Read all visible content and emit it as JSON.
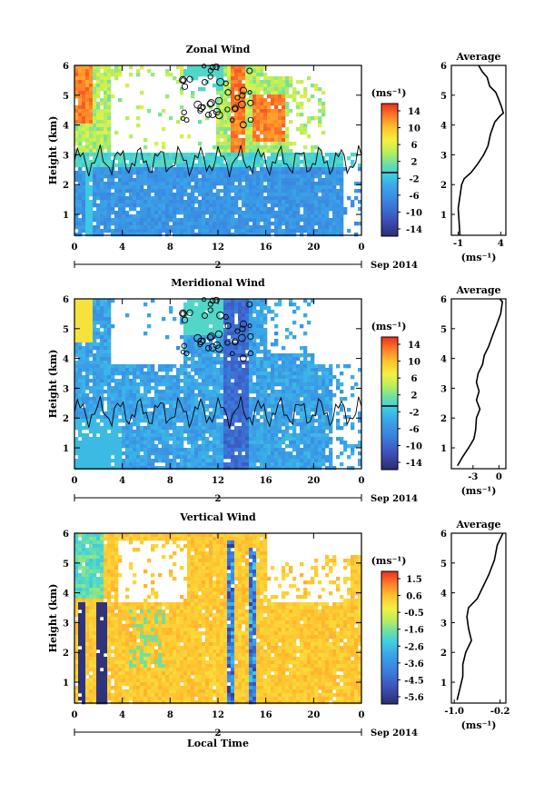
{
  "figure": {
    "xlabel": "Local Time",
    "date_label": "Sep 2014",
    "day_label": "2"
  },
  "chart_data": [
    {
      "type": "heatmap",
      "title": "Zonal Wind",
      "ylabel": "Height (km)",
      "xlabel": "Local Time",
      "x_ticks": [
        "0",
        "4",
        "8",
        "12",
        "16",
        "20",
        "0"
      ],
      "y_ticks": [
        "1",
        "2",
        "3",
        "4",
        "5",
        "6"
      ],
      "xlim": [
        0,
        24
      ],
      "ylim": [
        0.3,
        6
      ],
      "colorbar": {
        "unit": "(ms⁻¹)",
        "ticks": [
          "14",
          "10",
          "6",
          "2",
          "-2",
          "-6",
          "-10",
          "-14"
        ],
        "range": [
          -16,
          16
        ],
        "zero_line": true
      },
      "contour_level": 0,
      "date_label": "Sep 2014",
      "day_label": "2",
      "average": {
        "title": "Average",
        "xlabel": "(ms⁻¹)",
        "x_ticks": [
          "-1",
          "4"
        ],
        "xlim": [
          -1.8,
          4.6
        ],
        "y_ticks": [
          "1",
          "2",
          "3",
          "4",
          "5",
          "6"
        ],
        "ylim": [
          0.3,
          6
        ],
        "profile": [
          [
            -0.8,
            0.3
          ],
          [
            -0.9,
            0.8
          ],
          [
            -1.0,
            1.2
          ],
          [
            -0.8,
            1.6
          ],
          [
            -0.6,
            2.0
          ],
          [
            -0.3,
            2.2
          ],
          [
            0.5,
            2.4
          ],
          [
            1.3,
            2.7
          ],
          [
            2.0,
            3.0
          ],
          [
            2.5,
            3.3
          ],
          [
            2.8,
            3.7
          ],
          [
            3.3,
            4.1
          ],
          [
            3.9,
            4.3
          ],
          [
            4.3,
            4.4
          ],
          [
            4.1,
            4.6
          ],
          [
            3.7,
            4.9
          ],
          [
            3.4,
            5.1
          ],
          [
            2.7,
            5.3
          ],
          [
            2.4,
            5.6
          ],
          [
            1.8,
            5.8
          ],
          [
            1.4,
            6.0
          ]
        ]
      }
    },
    {
      "type": "heatmap",
      "title": "Meridional Wind",
      "ylabel": "Height (km)",
      "xlabel": "Local Time",
      "x_ticks": [
        "0",
        "4",
        "8",
        "12",
        "16",
        "20",
        "0"
      ],
      "y_ticks": [
        "1",
        "2",
        "3",
        "4",
        "5",
        "6"
      ],
      "xlim": [
        0,
        24
      ],
      "ylim": [
        0.3,
        6
      ],
      "colorbar": {
        "unit": "(ms⁻¹)",
        "ticks": [
          "14",
          "10",
          "6",
          "2",
          "-2",
          "-6",
          "-10",
          "-14"
        ],
        "range": [
          -16,
          16
        ],
        "zero_line": true
      },
      "contour_level": 0,
      "date_label": "Sep 2014",
      "day_label": "2",
      "average": {
        "title": "Average",
        "xlabel": "(ms⁻¹)",
        "x_ticks": [
          "-3",
          "0"
        ],
        "xlim": [
          -5.5,
          0.8
        ],
        "y_ticks": [
          "1",
          "2",
          "3",
          "4",
          "5",
          "6"
        ],
        "ylim": [
          0.3,
          6
        ],
        "profile": [
          [
            -4.8,
            0.4
          ],
          [
            -4.2,
            0.7
          ],
          [
            -3.5,
            1.0
          ],
          [
            -2.9,
            1.3
          ],
          [
            -2.7,
            1.6
          ],
          [
            -2.6,
            2.0
          ],
          [
            -2.2,
            2.3
          ],
          [
            -2.6,
            2.6
          ],
          [
            -2.3,
            2.9
          ],
          [
            -2.6,
            3.2
          ],
          [
            -2.4,
            3.5
          ],
          [
            -1.9,
            3.8
          ],
          [
            -1.7,
            4.1
          ],
          [
            -1.2,
            4.4
          ],
          [
            -0.7,
            4.8
          ],
          [
            -0.3,
            5.1
          ],
          [
            0.2,
            5.5
          ],
          [
            0.4,
            5.9
          ],
          [
            0.1,
            6.0
          ]
        ]
      }
    },
    {
      "type": "heatmap",
      "title": "Vertical Wind",
      "ylabel": "Height (km)",
      "xlabel": "Local Time",
      "x_ticks": [
        "0",
        "4",
        "8",
        "12",
        "16",
        "20",
        "0"
      ],
      "y_ticks": [
        "1",
        "2",
        "3",
        "4",
        "5",
        "6"
      ],
      "xlim": [
        0,
        24
      ],
      "ylim": [
        0.3,
        6
      ],
      "colorbar": {
        "unit": "(ms⁻¹)",
        "ticks": [
          "1.5",
          "0.6",
          "-0.5",
          "-1.6",
          "-2.6",
          "-3.6",
          "-4.5",
          "-5.6"
        ],
        "range": [
          -6.0,
          2.0
        ],
        "zero_line": false
      },
      "date_label": "Sep 2014",
      "day_label": "2",
      "average": {
        "title": "Average",
        "xlabel": "(ms⁻¹)",
        "x_ticks": [
          "-1.0",
          "-0.2"
        ],
        "xlim": [
          -1.05,
          -0.1
        ],
        "y_ticks": [
          "1",
          "2",
          "3",
          "4",
          "5",
          "6"
        ],
        "ylim": [
          0.3,
          6
        ],
        "profile": [
          [
            -0.95,
            0.4
          ],
          [
            -0.9,
            0.8
          ],
          [
            -0.85,
            1.2
          ],
          [
            -0.85,
            1.6
          ],
          [
            -0.8,
            2.0
          ],
          [
            -0.7,
            2.4
          ],
          [
            -0.75,
            2.8
          ],
          [
            -0.78,
            3.2
          ],
          [
            -0.75,
            3.5
          ],
          [
            -0.6,
            3.8
          ],
          [
            -0.5,
            4.2
          ],
          [
            -0.4,
            4.6
          ],
          [
            -0.3,
            5.1
          ],
          [
            -0.25,
            5.6
          ],
          [
            -0.15,
            6.0
          ]
        ]
      }
    }
  ]
}
